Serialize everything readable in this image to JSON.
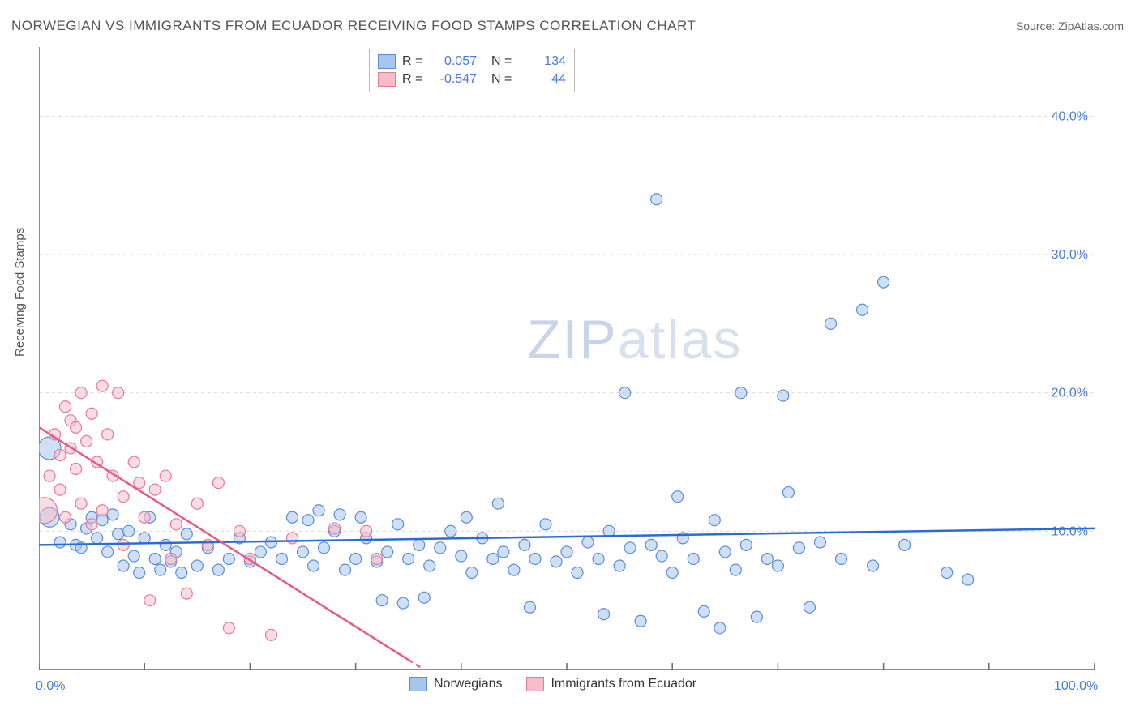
{
  "title": "NORWEGIAN VS IMMIGRANTS FROM ECUADOR RECEIVING FOOD STAMPS CORRELATION CHART",
  "source": "Source: ZipAtlas.com",
  "y_axis_label": "Receiving Food Stamps",
  "watermark_bold": "ZIP",
  "watermark_thin": "atlas",
  "chart": {
    "type": "scatter",
    "background_color": "#ffffff",
    "grid_color": "#dcdcdc",
    "axis_color": "#666666",
    "xlim": [
      0,
      100
    ],
    "ylim": [
      0,
      45
    ],
    "x_ticks": [
      0,
      10,
      20,
      30,
      40,
      50,
      60,
      70,
      80,
      90,
      100
    ],
    "y_gridlines": [
      10,
      20,
      30,
      40
    ],
    "y_tick_labels": [
      "10.0%",
      "20.0%",
      "30.0%",
      "40.0%"
    ],
    "x_tick_labels_shown": {
      "0": "0.0%",
      "100": "100.0%"
    },
    "marker_stroke_width": 1.2,
    "marker_radius": 9,
    "series": [
      {
        "name": "Norwegians",
        "fill": "#a8c6ec",
        "stroke": "#5b8dd6",
        "fill_opacity": 0.55,
        "regression": {
          "slope": 0.012,
          "intercept": 9.0,
          "color": "#2b6cd4",
          "width": 2.5,
          "dash": "none"
        },
        "stats": {
          "R": "0.057",
          "N": "134"
        },
        "points": [
          [
            1,
            16,
            14
          ],
          [
            1,
            11,
            12
          ],
          [
            2,
            9.2,
            7
          ],
          [
            3,
            10.5,
            7
          ],
          [
            3.5,
            9,
            7
          ],
          [
            4,
            8.8,
            7
          ],
          [
            4.5,
            10.2,
            7
          ],
          [
            5,
            11,
            7
          ],
          [
            5.5,
            9.5,
            7
          ],
          [
            6,
            10.8,
            7
          ],
          [
            6.5,
            8.5,
            7
          ],
          [
            7,
            11.2,
            7
          ],
          [
            7.5,
            9.8,
            7
          ],
          [
            8,
            7.5,
            7
          ],
          [
            8.5,
            10,
            7
          ],
          [
            9,
            8.2,
            7
          ],
          [
            9.5,
            7,
            7
          ],
          [
            10,
            9.5,
            7
          ],
          [
            10.5,
            11,
            7
          ],
          [
            11,
            8,
            7
          ],
          [
            11.5,
            7.2,
            7
          ],
          [
            12,
            9,
            7
          ],
          [
            12.5,
            7.8,
            7
          ],
          [
            13,
            8.5,
            7
          ],
          [
            13.5,
            7,
            7
          ],
          [
            14,
            9.8,
            7
          ],
          [
            15,
            7.5,
            7
          ],
          [
            16,
            8.8,
            7
          ],
          [
            17,
            7.2,
            7
          ],
          [
            18,
            8,
            7
          ],
          [
            19,
            9.5,
            7
          ],
          [
            20,
            7.8,
            7
          ],
          [
            21,
            8.5,
            7
          ],
          [
            22,
            9.2,
            7
          ],
          [
            23,
            8,
            7
          ],
          [
            24,
            11,
            7
          ],
          [
            25,
            8.5,
            7
          ],
          [
            25.5,
            10.8,
            7
          ],
          [
            26,
            7.5,
            7
          ],
          [
            26.5,
            11.5,
            7
          ],
          [
            27,
            8.8,
            7
          ],
          [
            28,
            10,
            7
          ],
          [
            28.5,
            11.2,
            7
          ],
          [
            29,
            7.2,
            7
          ],
          [
            30,
            8,
            7
          ],
          [
            30.5,
            11,
            7
          ],
          [
            31,
            9.5,
            7
          ],
          [
            32,
            7.8,
            7
          ],
          [
            32.5,
            5,
            7
          ],
          [
            33,
            8.5,
            7
          ],
          [
            34,
            10.5,
            7
          ],
          [
            34.5,
            4.8,
            7
          ],
          [
            35,
            8,
            7
          ],
          [
            36,
            9,
            7
          ],
          [
            36.5,
            5.2,
            7
          ],
          [
            37,
            7.5,
            7
          ],
          [
            38,
            8.8,
            7
          ],
          [
            39,
            10,
            7
          ],
          [
            40,
            8.2,
            7
          ],
          [
            40.5,
            11,
            7
          ],
          [
            41,
            7,
            7
          ],
          [
            42,
            9.5,
            7
          ],
          [
            43,
            8,
            7
          ],
          [
            43.5,
            12,
            7
          ],
          [
            44,
            8.5,
            7
          ],
          [
            45,
            7.2,
            7
          ],
          [
            46,
            9,
            7
          ],
          [
            46.5,
            4.5,
            7
          ],
          [
            47,
            8,
            7
          ],
          [
            48,
            10.5,
            7
          ],
          [
            49,
            7.8,
            7
          ],
          [
            50,
            8.5,
            7
          ],
          [
            51,
            7,
            7
          ],
          [
            52,
            9.2,
            7
          ],
          [
            53,
            8,
            7
          ],
          [
            53.5,
            4,
            7
          ],
          [
            54,
            10,
            7
          ],
          [
            55,
            7.5,
            7
          ],
          [
            55.5,
            20,
            7
          ],
          [
            56,
            8.8,
            7
          ],
          [
            57,
            3.5,
            7
          ],
          [
            58,
            9,
            7
          ],
          [
            58.5,
            34,
            7
          ],
          [
            59,
            8.2,
            7
          ],
          [
            60,
            7,
            7
          ],
          [
            60.5,
            12.5,
            7
          ],
          [
            61,
            9.5,
            7
          ],
          [
            62,
            8,
            7
          ],
          [
            63,
            4.2,
            7
          ],
          [
            64,
            10.8,
            7
          ],
          [
            64.5,
            3,
            7
          ],
          [
            65,
            8.5,
            7
          ],
          [
            66,
            7.2,
            7
          ],
          [
            66.5,
            20,
            7
          ],
          [
            67,
            9,
            7
          ],
          [
            68,
            3.8,
            7
          ],
          [
            69,
            8,
            7
          ],
          [
            70,
            7.5,
            7
          ],
          [
            70.5,
            19.8,
            7
          ],
          [
            71,
            12.8,
            7
          ],
          [
            72,
            8.8,
            7
          ],
          [
            73,
            4.5,
            7
          ],
          [
            74,
            9.2,
            7
          ],
          [
            75,
            25,
            7
          ],
          [
            76,
            8,
            7
          ],
          [
            78,
            26,
            7
          ],
          [
            79,
            7.5,
            7
          ],
          [
            80,
            28,
            7
          ],
          [
            82,
            9,
            7
          ],
          [
            86,
            7,
            7
          ],
          [
            88,
            6.5,
            7
          ]
        ]
      },
      {
        "name": "Immigrants from Ecuador",
        "fill": "#f6bcc9",
        "stroke": "#e87a96",
        "fill_opacity": 0.5,
        "regression": {
          "slope": -0.48,
          "intercept": 17.5,
          "color": "#e85a85",
          "width": 2.5,
          "dash_after_x": 35
        },
        "stats": {
          "R": "-0.547",
          "N": "44"
        },
        "points": [
          [
            0.5,
            11.5,
            16
          ],
          [
            1,
            14,
            7
          ],
          [
            1.5,
            17,
            7
          ],
          [
            2,
            15.5,
            7
          ],
          [
            2,
            13,
            7
          ],
          [
            2.5,
            19,
            7
          ],
          [
            2.5,
            11,
            7
          ],
          [
            3,
            18,
            7
          ],
          [
            3,
            16,
            7
          ],
          [
            3.5,
            17.5,
            7
          ],
          [
            3.5,
            14.5,
            7
          ],
          [
            4,
            20,
            7
          ],
          [
            4,
            12,
            7
          ],
          [
            4.5,
            16.5,
            7
          ],
          [
            5,
            18.5,
            7
          ],
          [
            5,
            10.5,
            7
          ],
          [
            5.5,
            15,
            7
          ],
          [
            6,
            20.5,
            7
          ],
          [
            6,
            11.5,
            7
          ],
          [
            6.5,
            17,
            7
          ],
          [
            7,
            14,
            7
          ],
          [
            7.5,
            20,
            7
          ],
          [
            8,
            12.5,
            7
          ],
          [
            8,
            9,
            7
          ],
          [
            9,
            15,
            7
          ],
          [
            9.5,
            13.5,
            7
          ],
          [
            10,
            11,
            7
          ],
          [
            10.5,
            5,
            7
          ],
          [
            11,
            13,
            7
          ],
          [
            12,
            14,
            7
          ],
          [
            12.5,
            8,
            7
          ],
          [
            13,
            10.5,
            7
          ],
          [
            14,
            5.5,
            7
          ],
          [
            15,
            12,
            7
          ],
          [
            16,
            9,
            7
          ],
          [
            17,
            13.5,
            7
          ],
          [
            18,
            3,
            7
          ],
          [
            19,
            10,
            7
          ],
          [
            20,
            8,
            7
          ],
          [
            22,
            2.5,
            7
          ],
          [
            24,
            9.5,
            7
          ],
          [
            28,
            10.2,
            7
          ],
          [
            31,
            10,
            7
          ],
          [
            32,
            8,
            7
          ]
        ]
      }
    ]
  },
  "stats_box": {
    "r_label": "R =",
    "n_label": "N ="
  },
  "bottom_legend": {
    "series1": "Norwegians",
    "series2": "Immigrants from Ecuador"
  }
}
